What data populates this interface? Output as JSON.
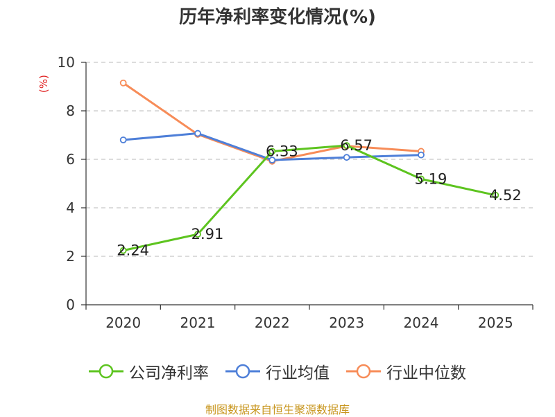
{
  "chart_data": {
    "type": "line",
    "title": "历年净利率变化情况(%)",
    "ylabel": "(%)",
    "categories": [
      "2020",
      "2021",
      "2022",
      "2023",
      "2024",
      "2025"
    ],
    "ylim": [
      0,
      10
    ],
    "yticks": [
      0,
      2,
      4,
      6,
      8,
      10
    ],
    "grid": true,
    "legend_position": "bottom",
    "series": [
      {
        "name": "公司净利率",
        "color": "#5dc41f",
        "values": [
          2.24,
          2.91,
          6.33,
          6.57,
          5.19,
          4.52
        ],
        "show_labels": true
      },
      {
        "name": "行业均值",
        "color": "#4e7fd8",
        "values": [
          6.8,
          7.07,
          5.97,
          6.08,
          6.18,
          null
        ],
        "show_labels": false
      },
      {
        "name": "行业中位数",
        "color": "#f78c58",
        "values": [
          9.15,
          7.03,
          5.92,
          6.55,
          6.33,
          null
        ],
        "show_labels": false
      }
    ]
  },
  "footer": {
    "source_text": "制图数据来自恒生聚源数据库"
  }
}
